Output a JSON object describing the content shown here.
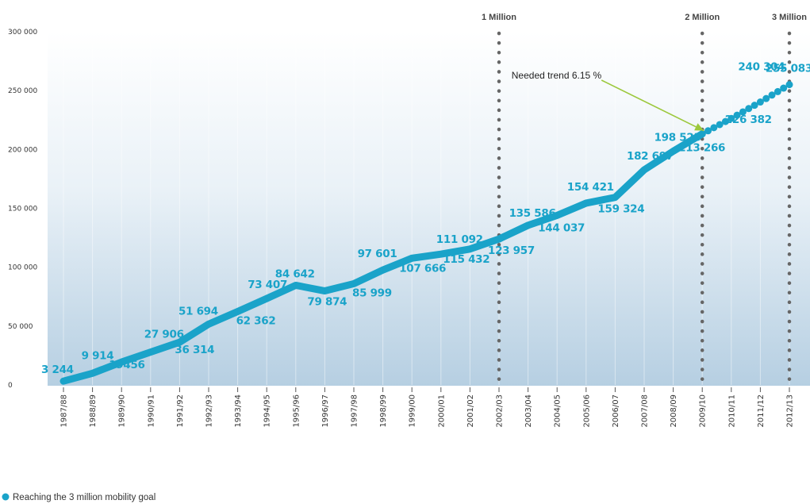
{
  "chart_data": {
    "type": "line",
    "title": "",
    "xlabel": "",
    "ylabel": "",
    "ylim": [
      0,
      300000
    ],
    "yticks": [
      0,
      50000,
      100000,
      150000,
      200000,
      250000,
      300000
    ],
    "ytick_labels": [
      "0",
      "50 000",
      "100 000",
      "150 000",
      "200 000",
      "250 000",
      "300 000"
    ],
    "categories": [
      "1987/88",
      "1988/89",
      "1989/90",
      "1990/91",
      "1991/92",
      "1992/93",
      "1993/94",
      "1994/95",
      "1995/96",
      "1996/97",
      "1997/98",
      "1998/99",
      "1999/00",
      "2000/01",
      "2001/02",
      "2002/03",
      "2003/04",
      "2004/05",
      "2005/06",
      "2006/07",
      "2007/08",
      "2008/09",
      "2009/10",
      "2010/11",
      "2011/12",
      "2012/13"
    ],
    "series": [
      {
        "name": "",
        "style": "solid",
        "values": [
          3244,
          9914,
          19456,
          27906,
          36314,
          51694,
          62362,
          73407,
          84642,
          79874,
          85999,
          97601,
          107666,
          111092,
          115432,
          123957,
          135586,
          144037,
          154421,
          159324,
          182697,
          198523,
          213266,
          null,
          null,
          null
        ],
        "labels": [
          "3 244",
          "9 914",
          "19456",
          "27 906",
          "36 314",
          "51 694",
          "62 362",
          "73 407",
          "84 642",
          "79 874",
          "85 999",
          "97 601",
          "107 666",
          "111 092",
          "115 432",
          "123 957",
          "135 586",
          "144 037",
          "154 421",
          "159 324",
          "182 697",
          "198 523",
          "213 266",
          null,
          null,
          null
        ]
      },
      {
        "name": "Reaching the 3 million mobility goal",
        "style": "dotted",
        "values": [
          null,
          null,
          null,
          null,
          null,
          null,
          null,
          null,
          null,
          null,
          null,
          null,
          null,
          null,
          null,
          null,
          null,
          null,
          null,
          null,
          null,
          null,
          213266,
          226382,
          240304,
          255083
        ],
        "labels": [
          null,
          null,
          null,
          null,
          null,
          null,
          null,
          null,
          null,
          null,
          null,
          null,
          null,
          null,
          null,
          null,
          null,
          null,
          null,
          null,
          null,
          null,
          null,
          "226 382",
          "240 304",
          "255 083"
        ]
      }
    ],
    "milestones": [
      {
        "label": "1 Million",
        "category": "2002/03"
      },
      {
        "label": "2 Million",
        "category": "2009/10"
      },
      {
        "label": "3 Million",
        "category": "2012/13"
      }
    ],
    "annotation": {
      "text": "Needed trend 6.15 %",
      "category": "2009/10",
      "value": 213266
    },
    "legend": {
      "text": "Reaching the 3 million mobility goal",
      "position": "bottom-left"
    },
    "grid": false,
    "colors": {
      "line": "#1aa3c9",
      "milestone": "#666666",
      "annotation": "#9cc83c",
      "label": "#1aa3c9"
    }
  }
}
